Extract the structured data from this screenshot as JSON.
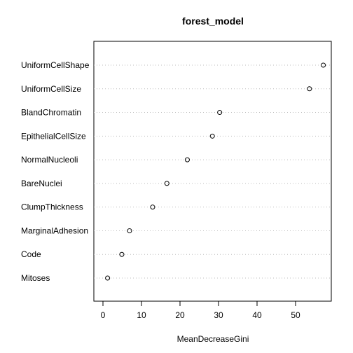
{
  "chart_data": {
    "type": "scatter",
    "title": "forest_model",
    "xlabel": "MeanDecreaseGini",
    "ylabel": "",
    "categories": [
      "UniformCellShape",
      "UniformCellSize",
      "BlandChromatin",
      "EpithelialCellSize",
      "NormalNucleoli",
      "BareNuclei",
      "ClumpThickness",
      "MarginalAdhesion",
      "Code",
      "Mitoses"
    ],
    "values": [
      57.2,
      53.6,
      30.3,
      28.4,
      21.9,
      16.6,
      12.9,
      6.9,
      4.9,
      1.2
    ],
    "xlim": [
      0,
      60
    ],
    "xticks": [
      "0",
      "10",
      "20",
      "30",
      "40",
      "50"
    ],
    "grid": "horizontal dotted",
    "marker": "open-circle",
    "colors": {
      "point": "#000000",
      "grid": "#bebebe",
      "frame": "#000000"
    }
  }
}
